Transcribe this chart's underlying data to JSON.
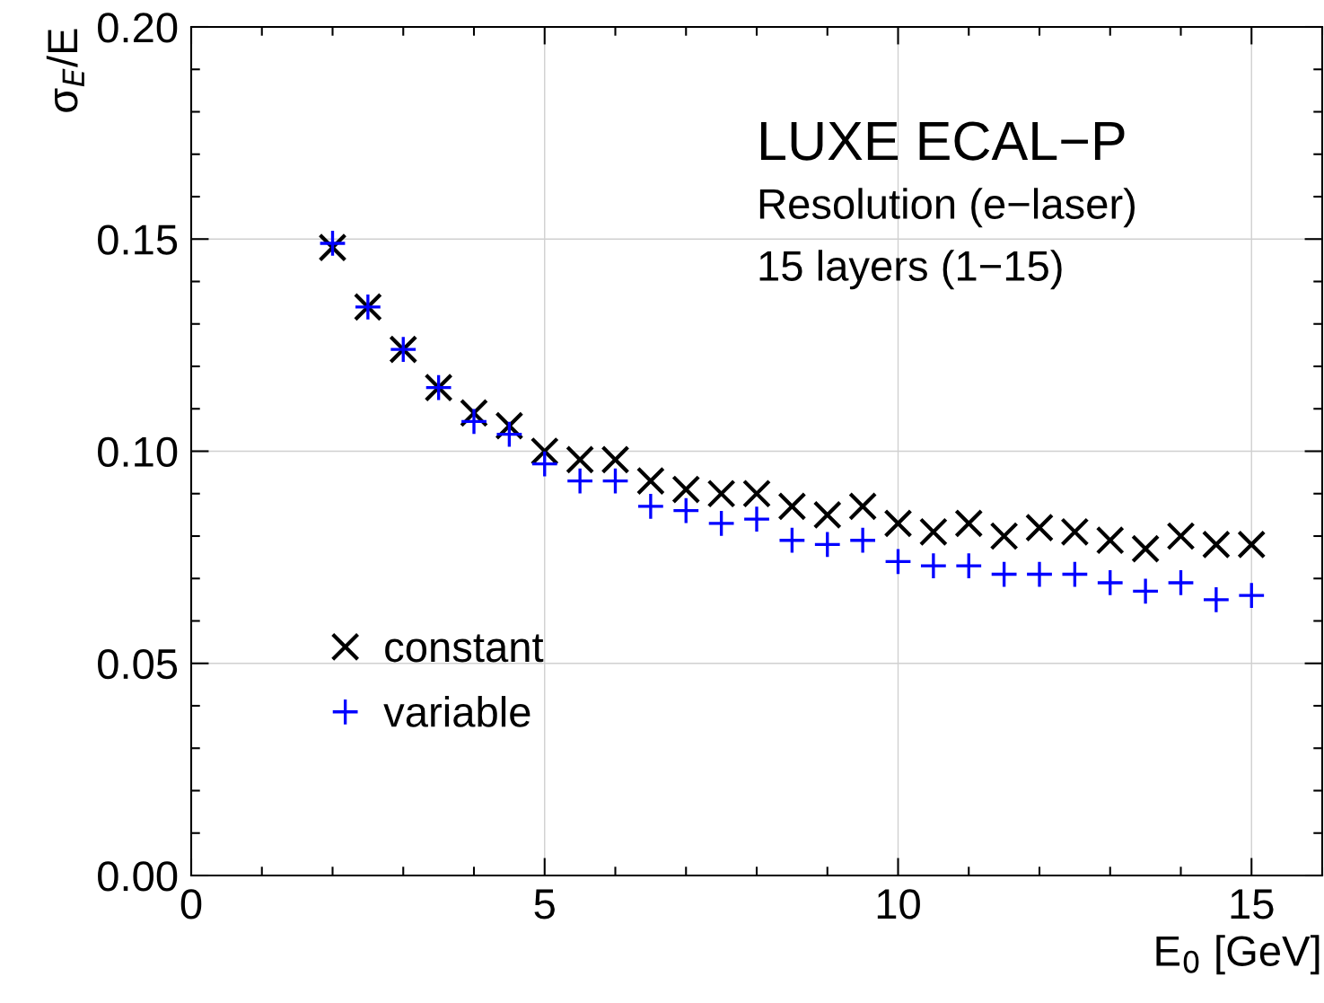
{
  "chart_data": {
    "type": "scatter",
    "xlabel": "E$_{0}$ [GeV]",
    "ylabel": "σ$_{E}$/E",
    "annotations": [
      "LUXE ECAL−P",
      "Resolution (e−laser)",
      "15 layers (1−15)"
    ],
    "x": [
      2,
      2.5,
      3,
      3.5,
      4,
      4.5,
      5,
      5.5,
      6,
      6.5,
      7,
      7.5,
      8,
      8.5,
      9,
      9.5,
      10,
      10.5,
      11,
      11.5,
      12,
      12.5,
      13,
      13.5,
      14,
      14.5,
      15
    ],
    "series": [
      {
        "name": "constant",
        "color": "#000000",
        "marker": "cross",
        "values": [
          0.148,
          0.134,
          0.124,
          0.115,
          0.109,
          0.106,
          0.1,
          0.098,
          0.098,
          0.093,
          0.091,
          0.09,
          0.09,
          0.087,
          0.085,
          0.087,
          0.083,
          0.081,
          0.083,
          0.08,
          0.082,
          0.081,
          0.079,
          0.077,
          0.08,
          0.078,
          0.078
        ]
      },
      {
        "name": "variable",
        "color": "#0000ff",
        "marker": "cross",
        "values": [
          0.149,
          0.134,
          0.124,
          0.115,
          0.107,
          0.104,
          0.097,
          0.093,
          0.093,
          0.087,
          0.086,
          0.083,
          0.084,
          0.079,
          0.078,
          0.079,
          0.074,
          0.073,
          0.073,
          0.071,
          0.071,
          0.071,
          0.069,
          0.067,
          0.069,
          0.065,
          0.066
        ]
      }
    ],
    "xlim": [
      0,
      16
    ],
    "ylim": [
      0,
      0.2
    ],
    "xticks": [
      0,
      5,
      10,
      15
    ],
    "yticks": [
      {
        "value": 0,
        "label": "0.00"
      },
      {
        "value": 0.05,
        "label": "0.05"
      },
      {
        "value": 0.1,
        "label": "0.10"
      },
      {
        "value": 0.15,
        "label": "0.15"
      },
      {
        "value": 0.2,
        "label": "0.20"
      }
    ],
    "grid": true,
    "legend": "bottom left"
  }
}
